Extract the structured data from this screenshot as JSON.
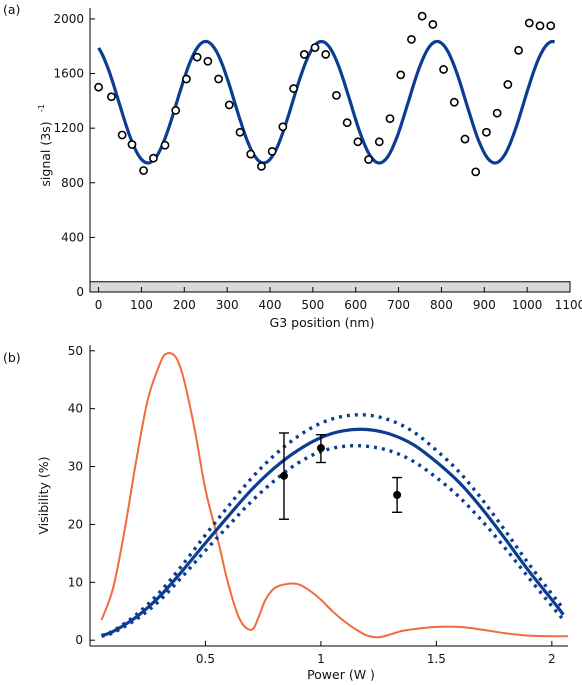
{
  "chart_data": [
    {
      "type": "scatter",
      "panel_label": "(a)",
      "xlabel": "G3 position (nm)",
      "ylabel": "signal (3s)",
      "ylabel_superscript": "-1",
      "xlim": [
        -20,
        1100
      ],
      "ylim": [
        0,
        2080
      ],
      "xticks": [
        0,
        100,
        200,
        300,
        400,
        500,
        600,
        700,
        800,
        900,
        1000,
        1100
      ],
      "yticks": [
        0,
        400,
        800,
        1200,
        1600,
        2000
      ],
      "xtick_labels": [
        "0",
        "100",
        "200",
        "300",
        "400",
        "500",
        "600",
        "700",
        "800",
        "900",
        "1000",
        "1100"
      ],
      "ytick_labels": [
        "0",
        "400",
        "800",
        "1200",
        "1600",
        "2000"
      ],
      "background_band": {
        "y0": 0,
        "y1": 75,
        "color": "#d9d9d9"
      },
      "series": [
        {
          "kind": "points",
          "x": [
            0,
            30,
            55,
            78,
            105,
            128,
            155,
            180,
            205,
            230,
            255,
            280,
            305,
            330,
            355,
            380,
            405,
            430,
            455,
            480,
            505,
            530,
            555,
            580,
            605,
            630,
            655,
            680,
            705,
            730,
            755,
            780,
            805,
            830,
            855,
            880,
            905,
            930,
            955,
            980,
            1005,
            1030,
            1055
          ],
          "y": [
            1500,
            1430,
            1150,
            1080,
            890,
            980,
            1075,
            1330,
            1560,
            1720,
            1690,
            1560,
            1370,
            1170,
            1010,
            920,
            1030,
            1210,
            1490,
            1740,
            1790,
            1740,
            1440,
            1240,
            1100,
            970,
            1100,
            1270,
            1590,
            1850,
            2020,
            1960,
            1630,
            1390,
            1120,
            880,
            1170,
            1310,
            1520,
            1770,
            1970,
            1950,
            1950
          ]
        },
        {
          "kind": "fit",
          "color": "#0b3d91",
          "fit_params": {
            "offset": 1390,
            "amplitude": 445,
            "period": 270,
            "phase_x": 250
          }
        }
      ]
    },
    {
      "type": "line",
      "panel_label": "(b)",
      "xlabel": "Power (W  )",
      "ylabel": "Visibility (%)",
      "xlim": [
        0,
        2.07
      ],
      "ylim": [
        -1,
        51
      ],
      "xticks": [
        0.5,
        1,
        1.5,
        2
      ],
      "yticks": [
        0,
        10,
        20,
        30,
        40,
        50
      ],
      "xtick_labels": [
        "0.5",
        "1",
        "1.5",
        "2"
      ],
      "ytick_labels": [
        "0",
        "10",
        "20",
        "30",
        "40",
        "50"
      ],
      "series": [
        {
          "kind": "line",
          "color": "#f26b3a",
          "x": [
            0.05,
            0.1,
            0.15,
            0.2,
            0.25,
            0.3,
            0.33,
            0.37,
            0.4,
            0.43,
            0.46,
            0.5,
            0.55,
            0.6,
            0.65,
            0.7,
            0.73,
            0.76,
            0.8,
            0.85,
            0.9,
            0.95,
            1.0,
            1.05,
            1.1,
            1.15,
            1.2,
            1.25,
            1.3,
            1.35,
            1.4,
            1.5,
            1.6,
            1.7,
            1.8,
            1.9,
            2.0,
            2.07
          ],
          "y": [
            3.5,
            9,
            19,
            31,
            41.5,
            47.5,
            49.5,
            49,
            46,
            41,
            35,
            26,
            18,
            9.5,
            3.5,
            1.8,
            4,
            7,
            9,
            9.7,
            9.7,
            8.6,
            7,
            5,
            3.3,
            1.9,
            0.8,
            0.5,
            1,
            1.6,
            1.9,
            2.3,
            2.3,
            1.8,
            1.2,
            0.8,
            0.7,
            0.7
          ]
        },
        {
          "kind": "line",
          "color": "#0b3d91",
          "x": [
            0.05,
            0.1,
            0.2,
            0.3,
            0.4,
            0.5,
            0.6,
            0.7,
            0.8,
            0.9,
            1.0,
            1.1,
            1.2,
            1.3,
            1.4,
            1.5,
            1.6,
            1.7,
            1.8,
            1.9,
            2.0,
            2.05
          ],
          "y": [
            0.8,
            1.5,
            4.0,
            7.5,
            12.0,
            16.8,
            21.5,
            26.0,
            29.8,
            32.8,
            35.0,
            36.2,
            36.4,
            35.6,
            33.8,
            30.8,
            27.2,
            22.6,
            17.4,
            12.0,
            7.0,
            4.4
          ]
        },
        {
          "kind": "dotted",
          "color": "#0b3d91",
          "x": [
            0.05,
            0.1,
            0.2,
            0.3,
            0.4,
            0.5,
            0.6,
            0.7,
            0.8,
            0.9,
            1.0,
            1.1,
            1.2,
            1.3,
            1.4,
            1.5,
            1.6,
            1.7,
            1.8,
            1.9,
            2.0,
            2.05
          ],
          "y": [
            0.8,
            1.6,
            4.4,
            8.2,
            13.0,
            18.2,
            23.2,
            28.0,
            32.0,
            35.2,
            37.5,
            38.7,
            38.9,
            38.0,
            36.0,
            32.8,
            29.0,
            24.2,
            18.8,
            13.2,
            8.0,
            5.4
          ]
        },
        {
          "kind": "dotted",
          "color": "#0b3d91",
          "x": [
            0.05,
            0.1,
            0.2,
            0.3,
            0.4,
            0.5,
            0.6,
            0.7,
            0.8,
            0.9,
            1.0,
            1.1,
            1.2,
            1.3,
            1.4,
            1.5,
            1.6,
            1.7,
            1.8,
            1.9,
            2.0,
            2.05
          ],
          "y": [
            0.7,
            1.3,
            3.6,
            6.8,
            11.0,
            15.5,
            19.8,
            24.0,
            27.6,
            30.6,
            32.6,
            33.5,
            33.5,
            32.7,
            30.9,
            28.1,
            24.7,
            20.5,
            15.8,
            10.8,
            5.9,
            3.5
          ]
        },
        {
          "kind": "errorbar",
          "color": "#000000",
          "x": [
            0.84,
            1.0,
            1.33
          ],
          "y": [
            28.4,
            33.2,
            25.1
          ],
          "yerr_low": [
            7.5,
            2.5,
            3.0
          ],
          "yerr_high": [
            7.4,
            2.3,
            3.0
          ]
        }
      ]
    }
  ]
}
